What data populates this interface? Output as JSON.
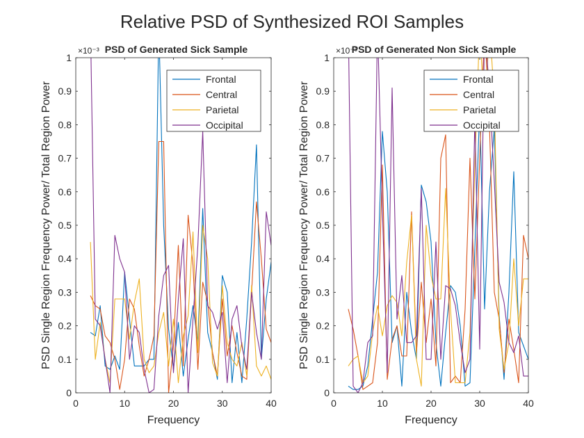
{
  "figure": {
    "title": "Relative PSD of Synthesized ROI Samples"
  },
  "chart_data": [
    {
      "type": "line",
      "title": "PSD of Generated Sick Sample",
      "xlabel": "Frequency",
      "ylabel": "PSD Single Region Frequency Power/ Total Region Power",
      "xlim": [
        0,
        40
      ],
      "ylim": [
        0,
        1
      ],
      "xticks": [
        "0",
        "10",
        "20",
        "30",
        "40"
      ],
      "yticks": [
        "0",
        "0.1",
        "0.2",
        "0.3",
        "0.4",
        "0.5",
        "0.6",
        "0.7",
        "0.8",
        "0.9",
        "1"
      ],
      "y_exponent_label": "×10⁻³",
      "grid": false,
      "legend_position": "top-right",
      "x": [
        3,
        4,
        5,
        6,
        7,
        8,
        9,
        10,
        11,
        12,
        13,
        14,
        15,
        16,
        17,
        18,
        19,
        20,
        21,
        22,
        23,
        24,
        25,
        26,
        27,
        28,
        29,
        30,
        31,
        32,
        33,
        34,
        35,
        36,
        37,
        38,
        39,
        40
      ],
      "series": [
        {
          "name": "Frontal",
          "color": "#0072BD",
          "values": [
            0.18,
            0.17,
            0.26,
            0.08,
            0.07,
            0.11,
            0.07,
            0.36,
            0.22,
            0.08,
            0.08,
            0.08,
            0.1,
            0.1,
            1.1,
            0.5,
            0.19,
            0.07,
            0.21,
            0.05,
            0.16,
            0.26,
            0.15,
            0.55,
            0.18,
            0.12,
            0.04,
            0.35,
            0.3,
            0.03,
            0.18,
            0.03,
            0.22,
            0.45,
            0.74,
            0.1,
            0.28,
            0.39
          ]
        },
        {
          "name": "Central",
          "color": "#D95319",
          "values": [
            0.29,
            0.26,
            0.25,
            0.17,
            0.15,
            0.1,
            0.01,
            0.1,
            0.28,
            0.25,
            0.14,
            0.05,
            0.1,
            0.17,
            0.75,
            0.75,
            0.0,
            0.14,
            0.44,
            0.08,
            0.53,
            0.38,
            0.07,
            0.33,
            0.27,
            0.12,
            0.05,
            0.28,
            0.11,
            0.2,
            0.12,
            0.05,
            0.04,
            0.3,
            0.57,
            0.4,
            0.19,
            0.15
          ]
        },
        {
          "name": "Parietal",
          "color": "#EDB120",
          "values": [
            0.45,
            0.1,
            0.21,
            0.1,
            0.03,
            0.28,
            0.28,
            0.28,
            0.16,
            0.27,
            0.34,
            0.1,
            0.06,
            0.08,
            0.18,
            0.24,
            0.08,
            0.22,
            0.03,
            0.17,
            0.23,
            0.48,
            0.12,
            0.5,
            0.4,
            0.09,
            0.05,
            0.32,
            0.15,
            0.1,
            0.08,
            0.15,
            0.05,
            0.32,
            0.08,
            0.05,
            0.08,
            0.04
          ]
        },
        {
          "name": "Occipital",
          "color": "#7E2F8E",
          "values": [
            1.1,
            0.22,
            0.2,
            0.1,
            0.0,
            0.47,
            0.4,
            0.36,
            0.1,
            0.2,
            0.18,
            0.07,
            0.0,
            0.01,
            0.23,
            0.35,
            0.38,
            0.06,
            0.28,
            0.46,
            0.0,
            0.22,
            0.44,
            0.78,
            0.26,
            0.24,
            0.19,
            0.24,
            0.03,
            0.22,
            0.26,
            0.14,
            0.07,
            0.3,
            0.18,
            0.1,
            0.54,
            0.44
          ]
        }
      ]
    },
    {
      "type": "line",
      "title": "PSD of Generated Non Sick Sample",
      "xlabel": "Frequency",
      "ylabel": "PSD Single Region Frequency Power/ Total Region Power",
      "xlim": [
        0,
        40
      ],
      "ylim": [
        0,
        1
      ],
      "xticks": [
        "0",
        "10",
        "20",
        "30",
        "40"
      ],
      "yticks": [
        "0",
        "0.1",
        "0.2",
        "0.3",
        "0.4",
        "0.5",
        "0.6",
        "0.7",
        "0.8",
        "0.9",
        "1"
      ],
      "y_exponent_label": "×10⁻³",
      "grid": false,
      "legend_position": "top-right",
      "x": [
        3,
        4,
        5,
        6,
        7,
        8,
        9,
        10,
        11,
        12,
        13,
        14,
        15,
        16,
        17,
        18,
        19,
        20,
        21,
        22,
        23,
        24,
        25,
        26,
        27,
        28,
        29,
        30,
        31,
        32,
        33,
        34,
        35,
        36,
        37,
        38,
        39,
        40
      ],
      "series": [
        {
          "name": "Frontal",
          "color": "#0072BD",
          "values": [
            0.02,
            0.01,
            0.01,
            0.02,
            0.08,
            0.22,
            0.36,
            0.78,
            0.6,
            0.15,
            0.2,
            0.02,
            0.3,
            0.18,
            0.1,
            0.62,
            0.57,
            0.45,
            0.15,
            0.02,
            0.18,
            0.32,
            0.3,
            0.2,
            0.02,
            0.03,
            0.43,
            0.85,
            0.25,
            0.6,
            0.79,
            0.23,
            0.04,
            0.3,
            0.66,
            0.18,
            0.14,
            0.1
          ]
        },
        {
          "name": "Central",
          "color": "#D95319",
          "values": [
            0.25,
            0.19,
            0.11,
            0.01,
            0.02,
            0.03,
            0.15,
            0.68,
            0.04,
            0.16,
            0.2,
            0.11,
            0.11,
            0.54,
            0.12,
            0.33,
            0.15,
            0.28,
            0.08,
            0.7,
            0.77,
            0.03,
            0.05,
            0.03,
            0.25,
            0.7,
            0.28,
            0.7,
            1.1,
            0.8,
            0.3,
            0.22,
            0.06,
            0.22,
            0.13,
            0.03,
            0.47,
            0.4
          ]
        },
        {
          "name": "Parietal",
          "color": "#EDB120",
          "values": [
            0.08,
            0.1,
            0.11,
            0.03,
            0.05,
            0.18,
            0.26,
            0.17,
            0.26,
            0.29,
            0.27,
            0.17,
            0.39,
            0.53,
            0.1,
            0.02,
            0.5,
            0.35,
            0.28,
            0.28,
            0.61,
            0.25,
            0.03,
            0.03,
            0.03,
            0.18,
            0.68,
            1.1,
            0.8,
            1.1,
            0.88,
            0.19,
            0.07,
            0.15,
            0.4,
            0.2,
            0.34,
            0.34
          ]
        },
        {
          "name": "Occipital",
          "color": "#7E2F8E",
          "values": [
            1.1,
            0.02,
            0.0,
            0.03,
            0.15,
            0.17,
            1.1,
            0.55,
            0.06,
            0.91,
            0.22,
            0.35,
            0.15,
            0.15,
            0.17,
            0.61,
            0.1,
            0.1,
            0.45,
            0.1,
            0.32,
            0.31,
            0.26,
            0.15,
            0.06,
            0.1,
            0.82,
            0.13,
            1.1,
            0.9,
            0.63,
            0.33,
            0.27,
            0.15,
            0.12,
            0.17,
            0.05,
            0.05
          ]
        }
      ]
    }
  ]
}
